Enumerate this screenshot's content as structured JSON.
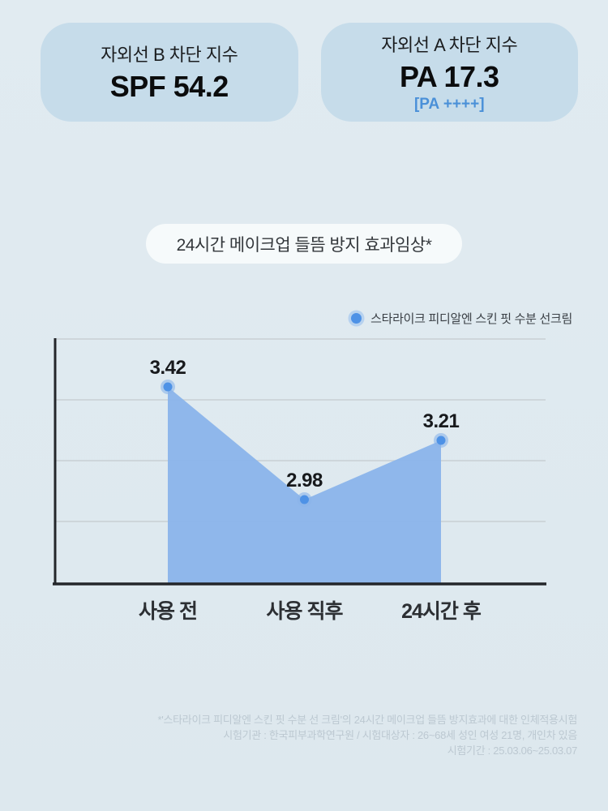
{
  "header": {
    "uvb": {
      "label": "자외선 B 차단 지수",
      "value": "SPF 54.2"
    },
    "uva": {
      "label": "자외선 A 차단 지수",
      "value": "PA 17.3",
      "grade": "[PA ++++]"
    }
  },
  "section": {
    "title": "24시간 메이크업 들뜸 방지 효과임상*"
  },
  "chart_data": {
    "type": "area",
    "title": "24시간 메이크업 들뜸 방지 효과임상*",
    "categories": [
      "사용 전",
      "사용 직후",
      "24시간 후"
    ],
    "series": [
      {
        "name": "스타라이크 피디알엔 스킨 핏 수분 선크림",
        "values": [
          3.42,
          2.98,
          3.21
        ]
      }
    ],
    "value_labels": [
      "3.42",
      "2.98",
      "3.21"
    ],
    "legend": [
      {
        "label": "스타라이크 피디알엔 스킨 핏 수분 선크림",
        "color": "#4e92e6"
      }
    ],
    "legend_position": "top-right",
    "grid": true,
    "gridline_count": 4,
    "y_axis_tick_labels": [],
    "colors": {
      "area_fill": "#8ab4ea",
      "marker": "#4e92e6",
      "axis": "#23262a",
      "gridline": "#c9cfd4"
    }
  },
  "footnotes": {
    "line1": "*'스타라이크 피디알엔 스킨 핏 수분 선 크림'의 24시간 메이크업 들뜸 방지효과에 대한 인체적용시험",
    "line2": "시험기관 : 한국피부과학연구원 / 시험대상자 : 26~68세 성인 여성 21명, 개인차 있음",
    "line3": "시험기간 : 25.03.06~25.03.07"
  },
  "colors": {
    "page_background": "#dfe9ee",
    "card_background": "#c6dcea",
    "pill_background": "#f6fafb",
    "grade_text": "#4a90d8",
    "footnote_text": "#bcc8d1"
  }
}
